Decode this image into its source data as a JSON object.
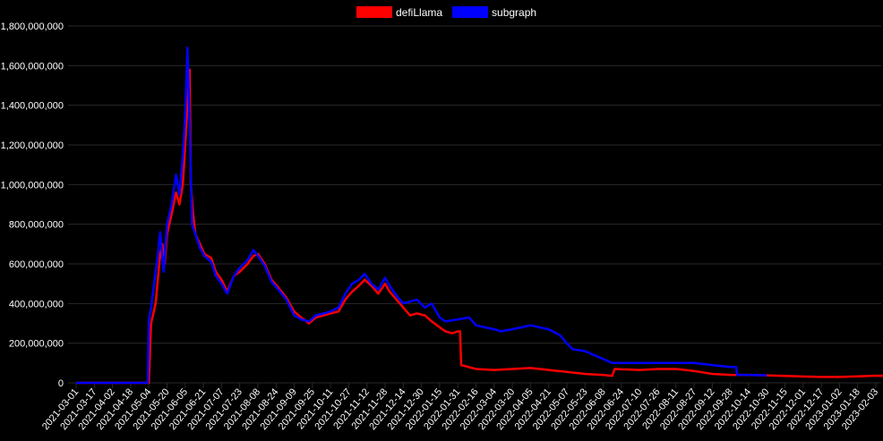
{
  "chart_data": {
    "type": "line",
    "title": "",
    "xlabel": "",
    "ylabel": "",
    "ylim": [
      0,
      1800000000
    ],
    "grid": true,
    "legend_position": "top-center",
    "y_ticks": [
      "0",
      "200,000,000",
      "400,000,000",
      "600,000,000",
      "800,000,000",
      "1,000,000,000",
      "1,200,000,000",
      "1,400,000,000",
      "1,600,000,000",
      "1,800,000,000"
    ],
    "x_ticks": [
      "2021-03-01",
      "2021-03-17",
      "2021-04-02",
      "2021-04-18",
      "2021-05-04",
      "2021-05-20",
      "2021-06-05",
      "2021-06-21",
      "2021-07-07",
      "2021-07-23",
      "2021-08-08",
      "2021-08-24",
      "2021-09-09",
      "2021-09-25",
      "2021-10-11",
      "2021-10-27",
      "2021-11-12",
      "2021-11-28",
      "2021-12-14",
      "2021-12-30",
      "2022-01-15",
      "2022-01-31",
      "2022-02-16",
      "2022-03-04",
      "2022-03-20",
      "2022-04-05",
      "2022-04-21",
      "2022-05-07",
      "2022-05-23",
      "2022-06-08",
      "2022-06-24",
      "2022-07-10",
      "2022-07-26",
      "2022-08-11",
      "2022-08-27",
      "2022-09-12",
      "2022-09-28",
      "2022-10-14",
      "2022-10-30",
      "2022-11-15",
      "2022-12-01",
      "2022-12-17",
      "2023-01-02",
      "2023-01-18",
      "2023-02-03"
    ],
    "series": [
      {
        "name": "defiLlama",
        "color": "#ff0000",
        "points": [
          [
            "2021-03-01",
            0
          ],
          [
            "2021-04-18",
            0
          ],
          [
            "2021-05-04",
            0
          ],
          [
            "2021-05-06",
            300000000
          ],
          [
            "2021-05-10",
            400000000
          ],
          [
            "2021-05-14",
            650000000
          ],
          [
            "2021-05-16",
            700000000
          ],
          [
            "2021-05-18",
            600000000
          ],
          [
            "2021-05-20",
            750000000
          ],
          [
            "2021-05-24",
            850000000
          ],
          [
            "2021-05-28",
            960000000
          ],
          [
            "2021-05-31",
            900000000
          ],
          [
            "2021-06-03",
            1000000000
          ],
          [
            "2021-06-05",
            1200000000
          ],
          [
            "2021-06-07",
            1400000000
          ],
          [
            "2021-06-09",
            1580000000
          ],
          [
            "2021-06-10",
            1000000000
          ],
          [
            "2021-06-12",
            850000000
          ],
          [
            "2021-06-14",
            750000000
          ],
          [
            "2021-06-18",
            700000000
          ],
          [
            "2021-06-22",
            650000000
          ],
          [
            "2021-06-28",
            630000000
          ],
          [
            "2021-07-02",
            560000000
          ],
          [
            "2021-07-07",
            520000000
          ],
          [
            "2021-07-12",
            460000000
          ],
          [
            "2021-07-18",
            540000000
          ],
          [
            "2021-07-23",
            560000000
          ],
          [
            "2021-07-30",
            600000000
          ],
          [
            "2021-08-04",
            640000000
          ],
          [
            "2021-08-08",
            650000000
          ],
          [
            "2021-08-14",
            600000000
          ],
          [
            "2021-08-20",
            520000000
          ],
          [
            "2021-08-26",
            480000000
          ],
          [
            "2021-09-02",
            430000000
          ],
          [
            "2021-09-09",
            360000000
          ],
          [
            "2021-09-15",
            330000000
          ],
          [
            "2021-09-22",
            300000000
          ],
          [
            "2021-09-28",
            330000000
          ],
          [
            "2021-10-05",
            340000000
          ],
          [
            "2021-10-11",
            350000000
          ],
          [
            "2021-10-18",
            360000000
          ],
          [
            "2021-10-24",
            420000000
          ],
          [
            "2021-10-30",
            460000000
          ],
          [
            "2021-11-05",
            490000000
          ],
          [
            "2021-11-10",
            520000000
          ],
          [
            "2021-11-16",
            490000000
          ],
          [
            "2021-11-22",
            450000000
          ],
          [
            "2021-11-28",
            500000000
          ],
          [
            "2021-12-02",
            460000000
          ],
          [
            "2021-12-08",
            420000000
          ],
          [
            "2021-12-14",
            380000000
          ],
          [
            "2021-12-20",
            340000000
          ],
          [
            "2021-12-26",
            350000000
          ],
          [
            "2022-01-02",
            340000000
          ],
          [
            "2022-01-08",
            310000000
          ],
          [
            "2022-01-15",
            280000000
          ],
          [
            "2022-01-20",
            260000000
          ],
          [
            "2022-01-26",
            250000000
          ],
          [
            "2022-01-31",
            260000000
          ],
          [
            "2022-02-02",
            260000000
          ],
          [
            "2022-02-03",
            90000000
          ],
          [
            "2022-02-16",
            70000000
          ],
          [
            "2022-03-04",
            65000000
          ],
          [
            "2022-03-20",
            70000000
          ],
          [
            "2022-04-05",
            75000000
          ],
          [
            "2022-04-21",
            65000000
          ],
          [
            "2022-05-07",
            55000000
          ],
          [
            "2022-05-23",
            45000000
          ],
          [
            "2022-06-08",
            40000000
          ],
          [
            "2022-06-16",
            35000000
          ],
          [
            "2022-06-18",
            70000000
          ],
          [
            "2022-07-10",
            65000000
          ],
          [
            "2022-07-26",
            70000000
          ],
          [
            "2022-08-11",
            70000000
          ],
          [
            "2022-08-27",
            60000000
          ],
          [
            "2022-09-12",
            45000000
          ],
          [
            "2022-09-28",
            40000000
          ],
          [
            "2022-10-14",
            40000000
          ],
          [
            "2022-10-30",
            38000000
          ],
          [
            "2022-11-15",
            35000000
          ],
          [
            "2022-12-01",
            32000000
          ],
          [
            "2022-12-17",
            30000000
          ],
          [
            "2023-01-02",
            30000000
          ],
          [
            "2023-01-18",
            33000000
          ],
          [
            "2023-02-03",
            36000000
          ],
          [
            "2023-02-12",
            35000000
          ]
        ]
      },
      {
        "name": "subgraph",
        "color": "#0000ff",
        "points": [
          [
            "2021-03-01",
            0
          ],
          [
            "2021-04-18",
            0
          ],
          [
            "2021-05-03",
            0
          ],
          [
            "2021-05-04",
            320000000
          ],
          [
            "2021-05-06",
            380000000
          ],
          [
            "2021-05-12",
            650000000
          ],
          [
            "2021-05-14",
            760000000
          ],
          [
            "2021-05-17",
            560000000
          ],
          [
            "2021-05-20",
            800000000
          ],
          [
            "2021-05-24",
            900000000
          ],
          [
            "2021-05-28",
            1050000000
          ],
          [
            "2021-05-31",
            950000000
          ],
          [
            "2021-06-03",
            1150000000
          ],
          [
            "2021-06-05",
            1350000000
          ],
          [
            "2021-06-07",
            1690000000
          ],
          [
            "2021-06-09",
            1300000000
          ],
          [
            "2021-06-11",
            800000000
          ],
          [
            "2021-06-14",
            750000000
          ],
          [
            "2021-06-18",
            680000000
          ],
          [
            "2021-06-22",
            640000000
          ],
          [
            "2021-06-28",
            610000000
          ],
          [
            "2021-07-02",
            540000000
          ],
          [
            "2021-07-07",
            500000000
          ],
          [
            "2021-07-12",
            450000000
          ],
          [
            "2021-07-18",
            540000000
          ],
          [
            "2021-07-23",
            580000000
          ],
          [
            "2021-07-30",
            620000000
          ],
          [
            "2021-08-04",
            670000000
          ],
          [
            "2021-08-08",
            640000000
          ],
          [
            "2021-08-14",
            590000000
          ],
          [
            "2021-08-20",
            510000000
          ],
          [
            "2021-08-26",
            470000000
          ],
          [
            "2021-09-02",
            420000000
          ],
          [
            "2021-09-09",
            340000000
          ],
          [
            "2021-09-15",
            320000000
          ],
          [
            "2021-09-22",
            310000000
          ],
          [
            "2021-09-28",
            340000000
          ],
          [
            "2021-10-05",
            350000000
          ],
          [
            "2021-10-11",
            360000000
          ],
          [
            "2021-10-18",
            380000000
          ],
          [
            "2021-10-24",
            450000000
          ],
          [
            "2021-10-30",
            500000000
          ],
          [
            "2021-11-05",
            520000000
          ],
          [
            "2021-11-10",
            550000000
          ],
          [
            "2021-11-16",
            500000000
          ],
          [
            "2021-11-22",
            470000000
          ],
          [
            "2021-11-28",
            530000000
          ],
          [
            "2021-12-02",
            490000000
          ],
          [
            "2021-12-08",
            440000000
          ],
          [
            "2021-12-14",
            400000000
          ],
          [
            "2021-12-20",
            410000000
          ],
          [
            "2021-12-26",
            420000000
          ],
          [
            "2022-01-02",
            380000000
          ],
          [
            "2022-01-08",
            400000000
          ],
          [
            "2022-01-15",
            330000000
          ],
          [
            "2022-01-20",
            310000000
          ],
          [
            "2022-01-31",
            320000000
          ],
          [
            "2022-02-10",
            330000000
          ],
          [
            "2022-02-16",
            290000000
          ],
          [
            "2022-03-04",
            270000000
          ],
          [
            "2022-03-10",
            260000000
          ],
          [
            "2022-03-20",
            270000000
          ],
          [
            "2022-04-05",
            290000000
          ],
          [
            "2022-04-21",
            270000000
          ],
          [
            "2022-05-01",
            240000000
          ],
          [
            "2022-05-07",
            200000000
          ],
          [
            "2022-05-12",
            170000000
          ],
          [
            "2022-05-23",
            160000000
          ],
          [
            "2022-06-08",
            120000000
          ],
          [
            "2022-06-16",
            100000000
          ],
          [
            "2022-06-24",
            100000000
          ],
          [
            "2022-07-10",
            100000000
          ],
          [
            "2022-07-26",
            100000000
          ],
          [
            "2022-08-11",
            100000000
          ],
          [
            "2022-08-27",
            100000000
          ],
          [
            "2022-09-12",
            90000000
          ],
          [
            "2022-09-28",
            80000000
          ],
          [
            "2022-10-03",
            80000000
          ],
          [
            "2022-10-04",
            40000000
          ],
          [
            "2022-10-14",
            40000000
          ],
          [
            "2022-10-30",
            38000000
          ]
        ]
      }
    ]
  }
}
